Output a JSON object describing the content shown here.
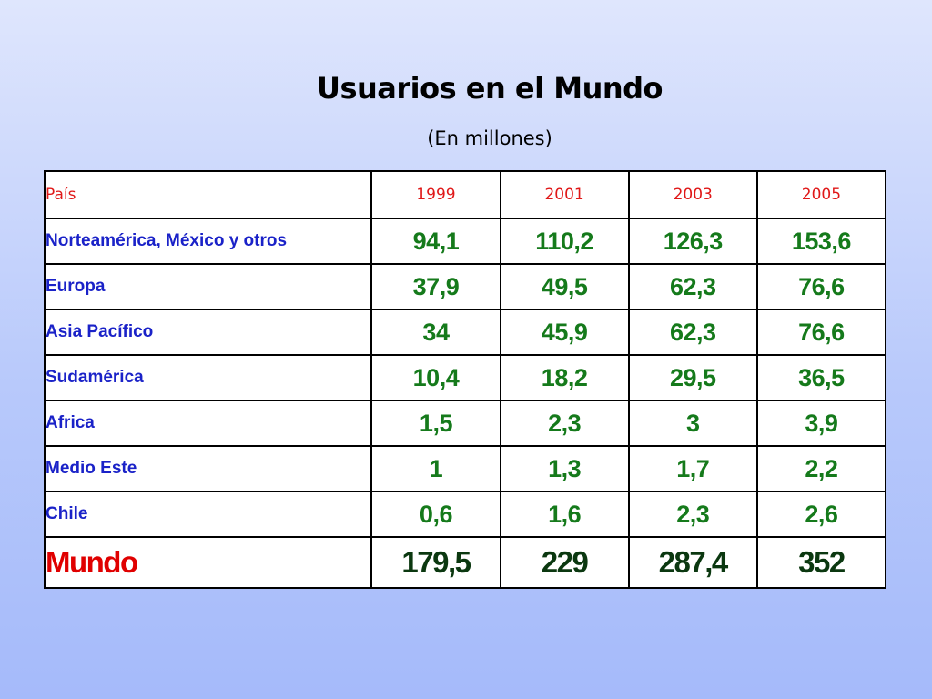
{
  "slide": {
    "title": "Usuarios en el Mundo",
    "subtitle": "(En millones)"
  },
  "table": {
    "header": {
      "country_label": "País",
      "years": [
        "1999",
        "2001",
        "2003",
        "2005"
      ]
    },
    "rows": [
      {
        "country": "Norteamérica, México y otros",
        "values": [
          "94,1",
          "110,2",
          "126,3",
          "153,6"
        ]
      },
      {
        "country": "Europa",
        "values": [
          "37,9",
          "49,5",
          "62,3",
          "76,6"
        ]
      },
      {
        "country": "Asia Pacífico",
        "values": [
          "34",
          "45,9",
          "62,3",
          "76,6"
        ]
      },
      {
        "country": "Sudamérica",
        "values": [
          "10,4",
          "18,2",
          "29,5",
          "36,5"
        ]
      },
      {
        "country": "Africa",
        "values": [
          "1,5",
          "2,3",
          "3",
          "3,9"
        ]
      },
      {
        "country": "Medio Este",
        "values": [
          "1",
          "1,3",
          "1,7",
          "2,2"
        ]
      },
      {
        "country": "Chile",
        "values": [
          "0,6",
          "1,6",
          "2,3",
          "2,6"
        ]
      }
    ],
    "total": {
      "label": "Mundo",
      "values": [
        "179,5",
        "229",
        "287,4",
        "352"
      ]
    }
  },
  "colors": {
    "header_text": "#e01818",
    "country_text": "#1a22c8",
    "value_text": "#157a1b",
    "total_label": "#e00000",
    "total_values": "#0b3810"
  }
}
